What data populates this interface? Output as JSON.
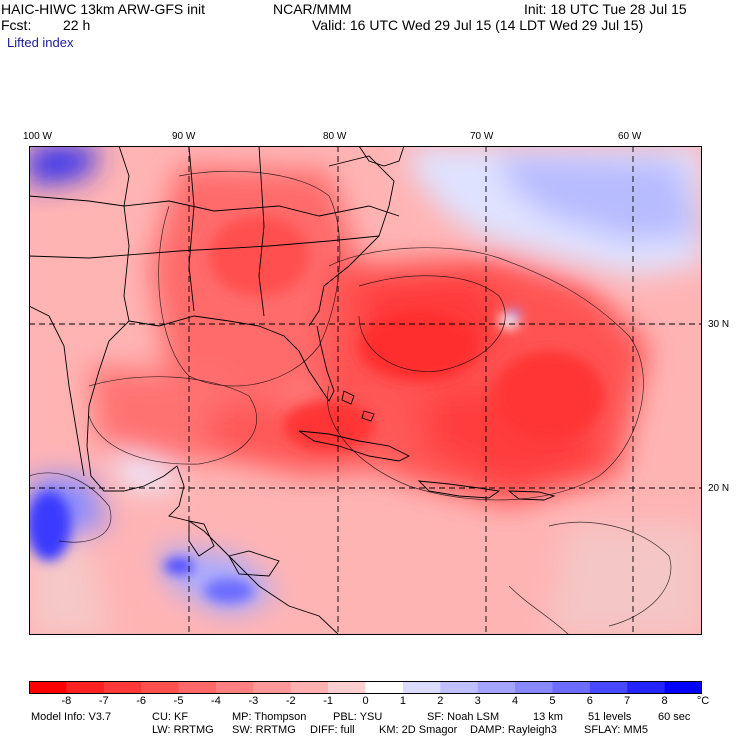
{
  "header": {
    "model_line": "HAIC-HIWC 13km ARW-GFS init",
    "agency": "NCAR/MMM",
    "init": "Init: 18 UTC Tue 28 Jul 15",
    "fcst_label": "Fcst:",
    "fcst_value": "22 h",
    "valid": "Valid: 16 UTC Wed 29 Jul 15 (14 LDT Wed 29 Jul 15)",
    "field": "Lifted index"
  },
  "map": {
    "lon_labels": [
      "100 W",
      "90 W",
      "80 W",
      "70 W",
      "60 W"
    ],
    "lat_labels": [
      "30 N",
      "20 N"
    ],
    "colors": {
      "land_line": "#000000",
      "grid_line": "#000000"
    }
  },
  "colorbar": {
    "labels": [
      "-8",
      "-7",
      "-6",
      "-5",
      "-4",
      "-3",
      "-2",
      "-1",
      "0",
      "1",
      "2",
      "3",
      "4",
      "5",
      "6",
      "7",
      "8"
    ],
    "unit": "°C",
    "colors": [
      "#ff0000",
      "#ff2020",
      "#ff3838",
      "#ff5050",
      "#ff6868",
      "#ff8080",
      "#ff9898",
      "#ffb0b0",
      "#ffd0d0",
      "#ffffff",
      "#dcdcff",
      "#c0c0ff",
      "#a4a4ff",
      "#8888ff",
      "#6c6cff",
      "#4848ff",
      "#2424ff",
      "#0000ff"
    ]
  },
  "info": {
    "row1": [
      "Model Info: V3.7",
      "CU: KF",
      "MP: Thompson",
      "PBL: YSU",
      "SF: Noah LSM",
      "13 km",
      "51 levels",
      "60 sec"
    ],
    "row2": [
      "LW: RRTMG",
      "SW: RRTMG",
      "DIFF: full",
      "KM: 2D Smagor",
      "DAMP: Rayleigh3",
      "SFLAY: MM5"
    ]
  }
}
